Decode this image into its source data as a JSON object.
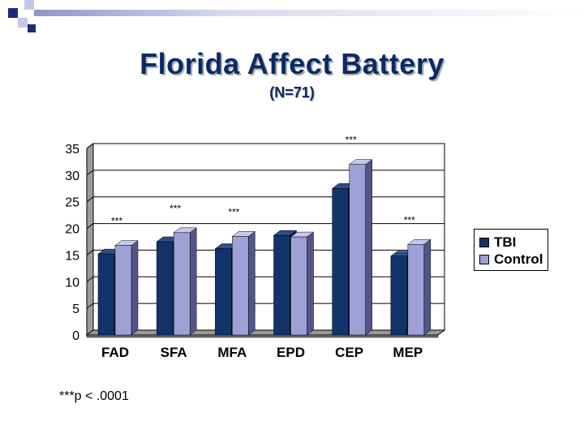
{
  "title": "Florida Affect Battery",
  "subtitle": "(N=71)",
  "footnote": "***p < .0001",
  "colors": {
    "tbi": "#12346a",
    "control": "#9ea0d6",
    "title": "#0b2a66",
    "corner_blue": "#1c2a7a",
    "corner_light": "#c4c8e6"
  },
  "chart_data": {
    "type": "bar",
    "categories": [
      "FAD",
      "SFA",
      "MFA",
      "EPD",
      "CEP",
      "MEP"
    ],
    "series": [
      {
        "name": "TBI",
        "values": [
          15.2,
          17.5,
          16.2,
          18.7,
          27.5,
          14.8
        ]
      },
      {
        "name": "Control",
        "values": [
          16.8,
          19.2,
          18.5,
          18.4,
          32.0,
          17.0
        ]
      }
    ],
    "significance": [
      "***",
      "***",
      "***",
      "",
      "***",
      "***"
    ],
    "yticks": [
      "0",
      "5",
      "10",
      "15",
      "20",
      "25",
      "30",
      "35"
    ],
    "ylim": [
      0,
      35
    ],
    "grid": true,
    "legend_position": "right"
  }
}
